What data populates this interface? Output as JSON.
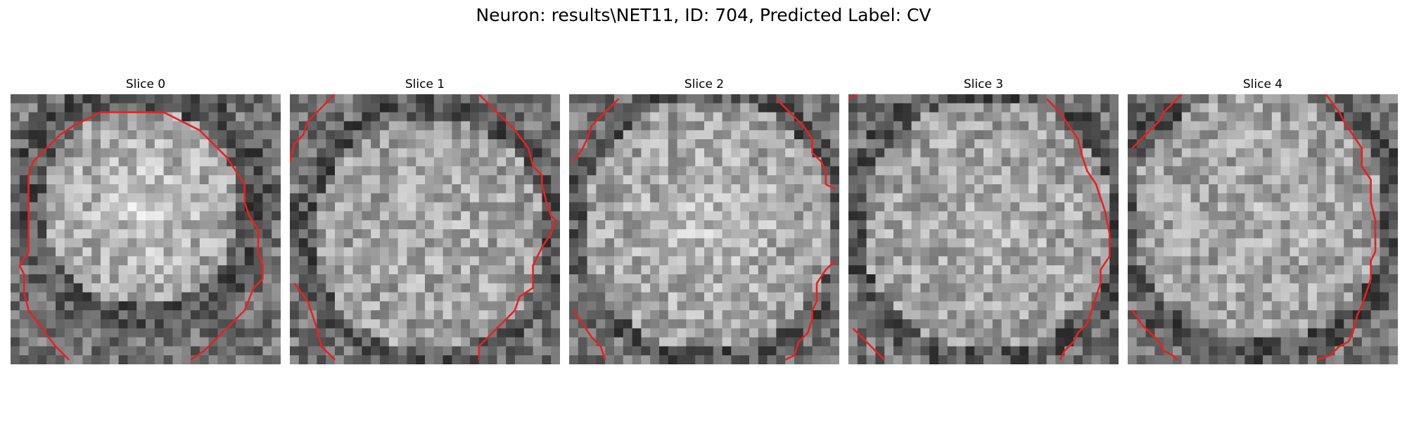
{
  "figure": {
    "title": "Neuron: results\\NET11, ID: 704, Predicted Label: CV"
  },
  "slices": [
    {
      "title": "Slice 0",
      "seed": 11,
      "contour_color": "#e8211f"
    },
    {
      "title": "Slice 1",
      "seed": 27,
      "contour_color": "#e8211f"
    },
    {
      "title": "Slice 2",
      "seed": 43,
      "contour_color": "#e8211f"
    },
    {
      "title": "Slice 3",
      "seed": 59,
      "contour_color": "#e8211f"
    },
    {
      "title": "Slice 4",
      "seed": 71,
      "contour_color": "#e8211f"
    }
  ],
  "colormap": "gray"
}
